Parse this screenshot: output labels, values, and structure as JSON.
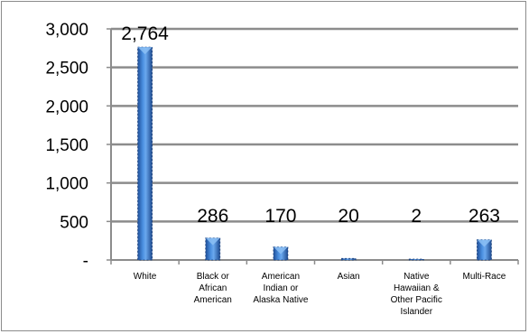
{
  "chart_data": {
    "type": "bar",
    "title": "",
    "xlabel": "",
    "ylabel": "",
    "ylim": [
      0,
      3000
    ],
    "yticks": [
      "3,000",
      "2,500",
      "2,000",
      "1,500",
      "1,000",
      "500",
      "-"
    ],
    "ytick_values": [
      3000,
      2500,
      2000,
      1500,
      1000,
      500,
      0
    ],
    "grid": true,
    "legend": "none",
    "categories": [
      [
        "White"
      ],
      [
        "Black or",
        "African",
        "American"
      ],
      [
        "American",
        "Indian or",
        "Alaska Native"
      ],
      [
        "Asian"
      ],
      [
        "Native",
        "Hawaiian &",
        "Other Pacific",
        "Islander"
      ],
      [
        "Multi-Race"
      ]
    ],
    "values": [
      2764,
      286,
      170,
      20,
      2,
      263
    ],
    "data_labels": [
      "2,764",
      "286",
      "170",
      "20",
      "2",
      "263"
    ],
    "bar_color": "#2e6fc4"
  }
}
